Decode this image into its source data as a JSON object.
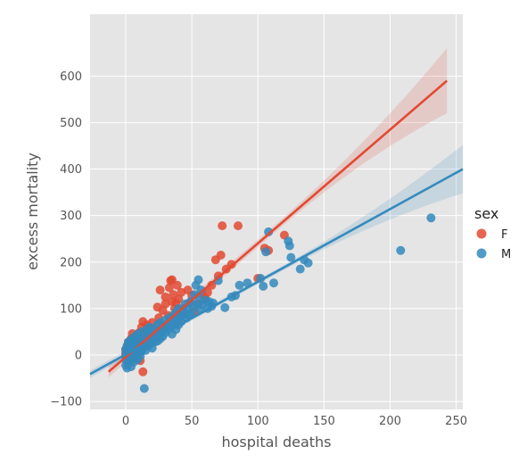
{
  "chart_data": {
    "type": "scatter",
    "title": "",
    "xlabel": "hospital deaths",
    "ylabel": "excess mortality",
    "xlim": [
      -27,
      255
    ],
    "ylim": [
      -117,
      733
    ],
    "xticks": [
      0,
      50,
      100,
      150,
      200,
      250
    ],
    "yticks": [
      -100,
      0,
      100,
      200,
      300,
      400,
      500,
      600
    ],
    "grid": true,
    "legend": {
      "title": "sex",
      "placement": "right"
    },
    "colors": {
      "F": "#e24a33",
      "M": "#348abd",
      "background": "#e5e5e5",
      "grid": "#ffffff"
    },
    "series": [
      {
        "name": "F",
        "color": "#e24a33",
        "points": [
          [
            0,
            5
          ],
          [
            0,
            12
          ],
          [
            1,
            18
          ],
          [
            1,
            -5
          ],
          [
            2,
            3
          ],
          [
            2,
            28
          ],
          [
            2,
            -10
          ],
          [
            3,
            8
          ],
          [
            3,
            15
          ],
          [
            3,
            22
          ],
          [
            4,
            -2
          ],
          [
            4,
            6
          ],
          [
            4,
            35
          ],
          [
            5,
            12
          ],
          [
            5,
            20
          ],
          [
            5,
            46
          ],
          [
            6,
            -8
          ],
          [
            6,
            30
          ],
          [
            7,
            10
          ],
          [
            7,
            25
          ],
          [
            8,
            40
          ],
          [
            8,
            15
          ],
          [
            9,
            5
          ],
          [
            9,
            33
          ],
          [
            10,
            48
          ],
          [
            10,
            22
          ],
          [
            11,
            -12
          ],
          [
            12,
            60
          ],
          [
            12,
            30
          ],
          [
            13,
            -36
          ],
          [
            13,
            72
          ],
          [
            14,
            18
          ],
          [
            15,
            45
          ],
          [
            16,
            65
          ],
          [
            18,
            35
          ],
          [
            19,
            50
          ],
          [
            20,
            70
          ],
          [
            21,
            55
          ],
          [
            22,
            42
          ],
          [
            24,
            103
          ],
          [
            25,
            80
          ],
          [
            26,
            140
          ],
          [
            27,
            62
          ],
          [
            28,
            96
          ],
          [
            30,
            110
          ],
          [
            30,
            125
          ],
          [
            32,
            85
          ],
          [
            33,
            145
          ],
          [
            34,
            160
          ],
          [
            35,
            115
          ],
          [
            35,
            162
          ],
          [
            36,
            130
          ],
          [
            37,
            100
          ],
          [
            38,
            112
          ],
          [
            39,
            150
          ],
          [
            40,
            120
          ],
          [
            41,
            90
          ],
          [
            42,
            135
          ],
          [
            43,
            100
          ],
          [
            45,
            90
          ],
          [
            47,
            140
          ],
          [
            48,
            112
          ],
          [
            50,
            128
          ],
          [
            52,
            95
          ],
          [
            55,
            110
          ],
          [
            58,
            130
          ],
          [
            60,
            122
          ],
          [
            62,
            135
          ],
          [
            65,
            150
          ],
          [
            68,
            205
          ],
          [
            70,
            170
          ],
          [
            72,
            215
          ],
          [
            73,
            278
          ],
          [
            76,
            185
          ],
          [
            80,
            195
          ],
          [
            85,
            278
          ],
          [
            100,
            165
          ],
          [
            105,
            230
          ],
          [
            108,
            225
          ],
          [
            120,
            258
          ]
        ]
      },
      {
        "name": "M",
        "color": "#348abd",
        "points": [
          [
            0,
            -22
          ],
          [
            0,
            -10
          ],
          [
            0,
            0
          ],
          [
            0,
            12
          ],
          [
            1,
            -28
          ],
          [
            1,
            -5
          ],
          [
            1,
            8
          ],
          [
            1,
            20
          ],
          [
            2,
            -18
          ],
          [
            2,
            2
          ],
          [
            2,
            15
          ],
          [
            2,
            28
          ],
          [
            3,
            -12
          ],
          [
            3,
            5
          ],
          [
            3,
            18
          ],
          [
            3,
            30
          ],
          [
            4,
            -25
          ],
          [
            4,
            -3
          ],
          [
            4,
            10
          ],
          [
            4,
            25
          ],
          [
            5,
            -8
          ],
          [
            5,
            6
          ],
          [
            5,
            22
          ],
          [
            5,
            35
          ],
          [
            6,
            -15
          ],
          [
            6,
            12
          ],
          [
            6,
            28
          ],
          [
            7,
            -5
          ],
          [
            7,
            8
          ],
          [
            7,
            20
          ],
          [
            7,
            40
          ],
          [
            8,
            0
          ],
          [
            8,
            15
          ],
          [
            8,
            30
          ],
          [
            9,
            -10
          ],
          [
            9,
            10
          ],
          [
            9,
            25
          ],
          [
            9,
            45
          ],
          [
            10,
            5
          ],
          [
            10,
            18
          ],
          [
            10,
            35
          ],
          [
            11,
            -2
          ],
          [
            11,
            12
          ],
          [
            11,
            28
          ],
          [
            12,
            8
          ],
          [
            12,
            22
          ],
          [
            12,
            50
          ],
          [
            13,
            15
          ],
          [
            13,
            30
          ],
          [
            14,
            -72
          ],
          [
            14,
            40
          ],
          [
            15,
            10
          ],
          [
            15,
            25
          ],
          [
            16,
            35
          ],
          [
            16,
            55
          ],
          [
            17,
            20
          ],
          [
            17,
            45
          ],
          [
            18,
            30
          ],
          [
            18,
            60
          ],
          [
            19,
            25
          ],
          [
            19,
            50
          ],
          [
            20,
            35
          ],
          [
            20,
            15
          ],
          [
            21,
            40
          ],
          [
            22,
            28
          ],
          [
            22,
            55
          ],
          [
            23,
            45
          ],
          [
            24,
            30
          ],
          [
            24,
            65
          ],
          [
            25,
            50
          ],
          [
            26,
            35
          ],
          [
            26,
            70
          ],
          [
            27,
            55
          ],
          [
            28,
            40
          ],
          [
            28,
            65
          ],
          [
            29,
            60
          ],
          [
            30,
            48
          ],
          [
            30,
            75
          ],
          [
            31,
            65
          ],
          [
            32,
            55
          ],
          [
            33,
            80
          ],
          [
            34,
            62
          ],
          [
            35,
            45
          ],
          [
            35,
            70
          ],
          [
            36,
            85
          ],
          [
            37,
            68
          ],
          [
            38,
            55
          ],
          [
            38,
            92
          ],
          [
            39,
            78
          ],
          [
            40,
            65
          ],
          [
            40,
            100
          ],
          [
            41,
            82
          ],
          [
            42,
            72
          ],
          [
            43,
            95
          ],
          [
            44,
            88
          ],
          [
            45,
            110
          ],
          [
            46,
            80
          ],
          [
            47,
            100
          ],
          [
            48,
            85
          ],
          [
            49,
            115
          ],
          [
            50,
            92
          ],
          [
            51,
            105
          ],
          [
            52,
            130
          ],
          [
            53,
            150
          ],
          [
            54,
            110
          ],
          [
            55,
            125
          ],
          [
            55,
            162
          ],
          [
            56,
            98
          ],
          [
            57,
            140
          ],
          [
            58,
            108
          ],
          [
            60,
            118
          ],
          [
            62,
            100
          ],
          [
            63,
            115
          ],
          [
            65,
            105
          ],
          [
            66,
            112
          ],
          [
            70,
            160
          ],
          [
            75,
            102
          ],
          [
            80,
            125
          ],
          [
            83,
            128
          ],
          [
            86,
            150
          ],
          [
            92,
            155
          ],
          [
            102,
            165
          ],
          [
            104,
            148
          ],
          [
            106,
            222
          ],
          [
            108,
            265
          ],
          [
            112,
            155
          ],
          [
            123,
            245
          ],
          [
            124,
            235
          ],
          [
            125,
            210
          ],
          [
            132,
            185
          ],
          [
            135,
            205
          ],
          [
            138,
            198
          ],
          [
            208,
            225
          ],
          [
            231,
            295
          ]
        ]
      }
    ],
    "regression": [
      {
        "name": "F",
        "x_start": -13,
        "y_start": -36,
        "x_end": 243,
        "y_end": 590,
        "band_half_start": 12,
        "band_half_mid": 8,
        "band_half_end": 70
      },
      {
        "name": "M",
        "x_start": -27,
        "y_start": -41,
        "x_end": 255,
        "y_end": 400,
        "band_half_start": 8,
        "band_half_mid": 5,
        "band_half_end": 52
      }
    ]
  }
}
